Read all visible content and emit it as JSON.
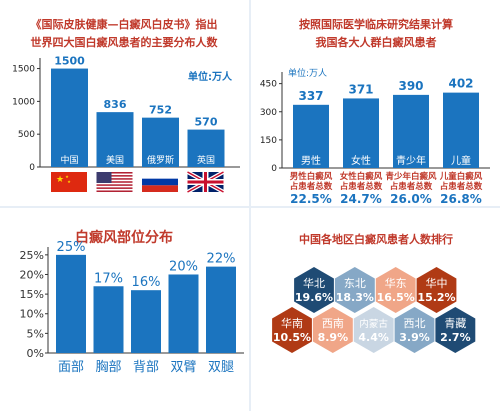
{
  "colors": {
    "bar_blue": "#1b74bf",
    "title_red": "#c0392b",
    "pct_blue": "#1b74bf",
    "hex_dark_red": "#b03a15",
    "hex_light_orange": "#f0a688",
    "hex_dark_blue": "#1f4b74",
    "hex_light_blue": "#86a8c6",
    "hex_light_gray": "#c9d6e3"
  },
  "panel1": {
    "title_line1": "《国际皮肤健康—白癜风白皮书》指出",
    "title_line2": "世界四大国白癜风患者的主要分布人数",
    "unit": "单位:万人",
    "flag_names": [
      "china-flag-icon",
      "usa-flag-icon",
      "russia-flag-icon",
      "uk-flag-icon"
    ]
  },
  "panel2": {
    "title_line1": "按照国际医学临床研究结果计算",
    "title_line2": "我国各大人群白癜风患者",
    "unit": "单位:万人",
    "captions": [
      [
        "男性白癜风",
        "占患者总数"
      ],
      [
        "女性白癜风",
        "占患者总数"
      ],
      [
        "青少年白癜风",
        "占患者总数"
      ],
      [
        "儿童白癜风",
        "占患者总数"
      ]
    ],
    "percents": [
      "22.5%",
      "24.7%",
      "26.0%",
      "26.8%"
    ]
  },
  "panel3": {
    "title": "白癜风部位分布"
  },
  "panel4": {
    "title": "中国各地区白癜风患者人数排行"
  },
  "chart_data": [
    {
      "type": "bar",
      "title": "《国际皮肤健康—白癜风白皮书》指出世界四大国白癜风患者的主要分布人数",
      "categories": [
        "中国",
        "美国",
        "俄罗斯",
        "英国"
      ],
      "values": [
        1500,
        836,
        752,
        570
      ],
      "ylabel": "单位:万人",
      "yticks": [
        "0",
        "500",
        "1000",
        "1500"
      ],
      "ylim": [
        0,
        1600
      ]
    },
    {
      "type": "bar",
      "title": "按照国际医学临床研究结果计算我国各大人群白癜风患者",
      "categories": [
        "男性",
        "女性",
        "青少年",
        "儿童"
      ],
      "values": [
        337,
        371,
        390,
        402
      ],
      "ylabel": "单位:万人",
      "yticks": [
        "0",
        "150",
        "300",
        "450"
      ],
      "ylim": [
        0,
        480
      ]
    },
    {
      "type": "bar",
      "title": "白癜风部位分布",
      "categories": [
        "面部",
        "胸部",
        "背部",
        "双臂",
        "双腿"
      ],
      "values": [
        25,
        17,
        16,
        20,
        22
      ],
      "value_labels": [
        "25%",
        "17%",
        "16%",
        "20%",
        "22%"
      ],
      "yticks": [
        "0%",
        "5%",
        "10%",
        "15%",
        "20%",
        "25%"
      ],
      "ylim": [
        0,
        27
      ]
    },
    {
      "type": "table",
      "title": "中国各地区白癜风患者人数排行",
      "regions": [
        "华北",
        "东北",
        "华东",
        "华中",
        "华南",
        "西南",
        "内蒙古",
        "西北",
        "青藏"
      ],
      "values": [
        "19.6%",
        "18.3%",
        "16.5%",
        "15.2%",
        "10.5%",
        "8.9%",
        "4.4%",
        "3.9%",
        "2.7%"
      ],
      "fills": [
        "#1f4b74",
        "#86a8c6",
        "#f0a688",
        "#b03a15",
        "#b03a15",
        "#f0a688",
        "#c9d6e3",
        "#86a8c6",
        "#1f4b74"
      ]
    }
  ]
}
